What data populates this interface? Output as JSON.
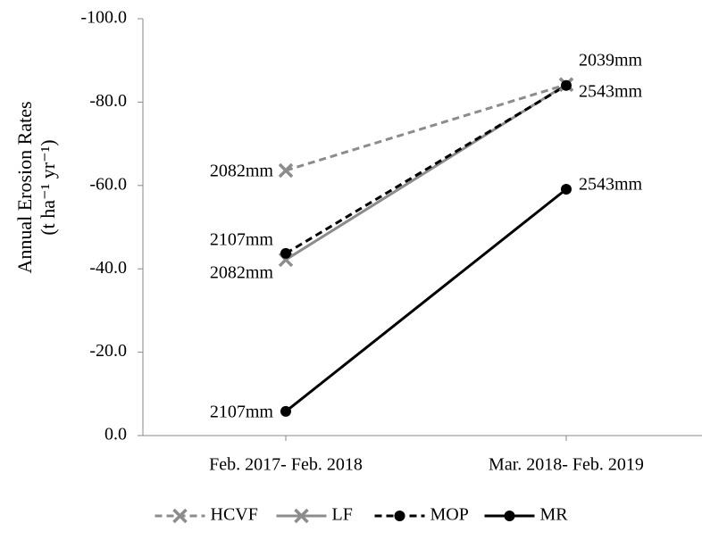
{
  "chart_data": {
    "type": "line",
    "ylabel": [
      "Annual Erosion Rates",
      "(t ha⁻¹ yr⁻¹)"
    ],
    "categories": [
      "Feb. 2017- Feb. 2018",
      "Mar. 2018- Feb. 2019"
    ],
    "ylim": [
      0,
      -100
    ],
    "yticks": [
      {
        "value": 0,
        "label": "0.0"
      },
      {
        "value": -20,
        "label": "-20.0"
      },
      {
        "value": -40,
        "label": "-40.0"
      },
      {
        "value": -60,
        "label": "-60.0"
      },
      {
        "value": -80,
        "label": "-80.0"
      },
      {
        "value": -100,
        "label": "-100.0"
      }
    ],
    "legend": "bottom",
    "series": [
      {
        "name": "HCVF",
        "color": "#8c8c8c",
        "dashed": true,
        "marker": "x",
        "values": [
          -63.6,
          -84.2
        ],
        "labels": [
          "2082mm",
          "2039mm"
        ]
      },
      {
        "name": "LF",
        "color": "#8c8c8c",
        "dashed": false,
        "marker": "x",
        "values": [
          -42.2,
          -84.2
        ],
        "labels": [
          "2082mm",
          null
        ]
      },
      {
        "name": "MOP",
        "color": "#000000",
        "dashed": true,
        "marker": "circle",
        "values": [
          -43.7,
          -84.0
        ],
        "labels": [
          "2107mm",
          "2543mm"
        ]
      },
      {
        "name": "MR",
        "color": "#000000",
        "dashed": false,
        "marker": "circle",
        "values": [
          -5.8,
          -59.1
        ],
        "labels": [
          "2107mm",
          "2543mm"
        ]
      }
    ]
  }
}
